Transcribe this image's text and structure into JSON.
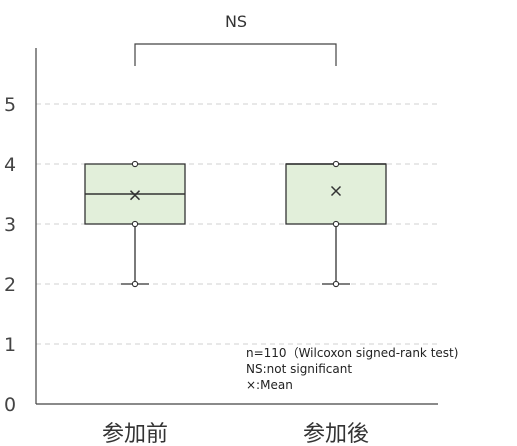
{
  "chart_data": {
    "type": "box",
    "categories": [
      "参加前",
      "参加後"
    ],
    "boxes": [
      {
        "category": "参加前",
        "whisker_low": 2,
        "q1": 3,
        "median": 3.5,
        "q3": 4,
        "whisker_high": 4,
        "mean": 3.48
      },
      {
        "category": "参加後",
        "whisker_low": 2,
        "q1": 3,
        "median": 4,
        "q3": 4,
        "whisker_high": 4,
        "mean": 3.55
      }
    ],
    "ylim": [
      0,
      5.8
    ],
    "yticks": [
      "0",
      "1",
      "2",
      "3",
      "4",
      "5"
    ],
    "significance": {
      "label": "NS",
      "between": [
        "参加前",
        "参加後"
      ]
    },
    "notes": [
      "n=110（Wilcoxon signed-rank test)",
      "NS:not significant",
      "×:Mean"
    ],
    "grid": "horizontal dashed",
    "box_fill": "#e2efda",
    "box_stroke": "#333333",
    "grid_color": "#d0d0d0"
  }
}
